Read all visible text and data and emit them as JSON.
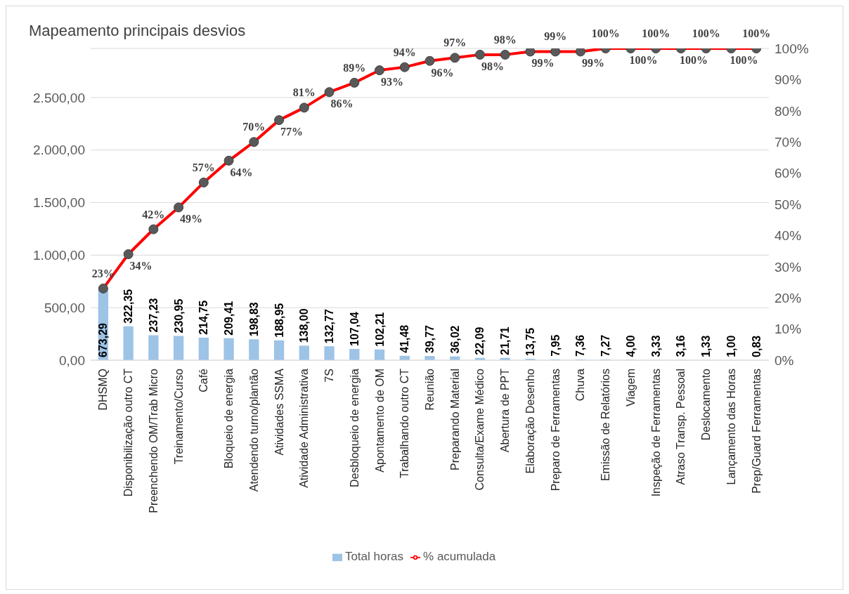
{
  "chart_data": {
    "type": "bar",
    "title": "Mapeamento principais desvios",
    "categories": [
      "DHSMQ",
      "Disponibilização outro CT",
      "Preenchendo OM/Trab Micro",
      "Treinamento/Curso",
      "Café",
      "Bloqueio de energia",
      "Atendendo turno/plantão",
      "Atividades SSMA",
      "Atividade Administrativa",
      "7S",
      "Desbloqueio de energia",
      "Apontamento de OM",
      "Trabalhando outro CT",
      "Reunião",
      "Preparando Material",
      "Consulta/Exame Médico",
      "Abertura de PPT",
      "Elaboração Desenho",
      "Preparo de Ferramentas",
      "Chuva",
      "Emissão de Relatórios",
      "Viagem",
      "Inspeção de Ferramentas",
      "Atraso Transp. Pessoal",
      "Deslocamento",
      "Lançamento das Horas",
      "Prep/Guard Ferramentas"
    ],
    "series": [
      {
        "name": "Total horas",
        "color": "#9dc3e6",
        "values": [
          673.29,
          322.35,
          237.23,
          230.95,
          214.75,
          209.41,
          198.83,
          188.95,
          138,
          132.77,
          107.04,
          102.21,
          41.48,
          39.77,
          36.02,
          22.09,
          21.71,
          13.75,
          7.95,
          7.36,
          7.27,
          4,
          3.33,
          3.16,
          1.33,
          1,
          0.83
        ],
        "value_labels": [
          "673,29",
          "322,35",
          "237,23",
          "230,95",
          "214,75",
          "209,41",
          "198,83",
          "188,95",
          "138,00",
          "132,77",
          "107,04",
          "102,21",
          "41,48",
          "39,77",
          "36,02",
          "22,09",
          "21,71",
          "13,75",
          "7,95",
          "7,36",
          "7,27",
          "4,00",
          "3,33",
          "3,16",
          "1,33",
          "1,00",
          "0,83"
        ]
      },
      {
        "type": "line",
        "name": "% acumulada",
        "color": "#ff0000",
        "axis": "y2",
        "marker": "circle",
        "values": [
          23,
          34,
          42,
          49,
          57,
          64,
          70,
          77,
          81,
          86,
          89,
          93,
          94,
          96,
          97,
          98,
          98,
          99,
          99,
          99,
          100,
          100,
          100,
          100,
          100,
          100,
          100
        ],
        "value_labels": [
          "23%",
          "34%",
          "42%",
          "49%",
          "57%",
          "64%",
          "70%",
          "77%",
          "81%",
          "86%",
          "89%",
          "93%",
          "94%",
          "96%",
          "97%",
          "98%",
          "98%",
          "99%",
          "99%",
          "99%",
          "100%",
          "100%",
          "100%",
          "100%",
          "100%",
          "100%",
          "100%"
        ]
      }
    ],
    "ylim": [
      0,
      2966.83
    ],
    "yticks": [
      {
        "value": 0,
        "label": "0,00"
      },
      {
        "value": 500,
        "label": "500,00"
      },
      {
        "value": 1000,
        "label": "1.000,00"
      },
      {
        "value": 1500,
        "label": "1.500,00"
      },
      {
        "value": 2000,
        "label": "2.000,00"
      },
      {
        "value": 2500,
        "label": "2.500,00"
      }
    ],
    "y2lim": [
      0,
      100
    ],
    "y2ticks": [
      {
        "value": 0,
        "label": "0%"
      },
      {
        "value": 10,
        "label": "10%"
      },
      {
        "value": 20,
        "label": "20%"
      },
      {
        "value": 30,
        "label": "30%"
      },
      {
        "value": 40,
        "label": "40%"
      },
      {
        "value": 50,
        "label": "50%"
      },
      {
        "value": 60,
        "label": "60%"
      },
      {
        "value": 70,
        "label": "70%"
      },
      {
        "value": 80,
        "label": "80%"
      },
      {
        "value": 90,
        "label": "90%"
      },
      {
        "value": 100,
        "label": "100%"
      }
    ],
    "grid": "y",
    "legend": "bottom"
  }
}
